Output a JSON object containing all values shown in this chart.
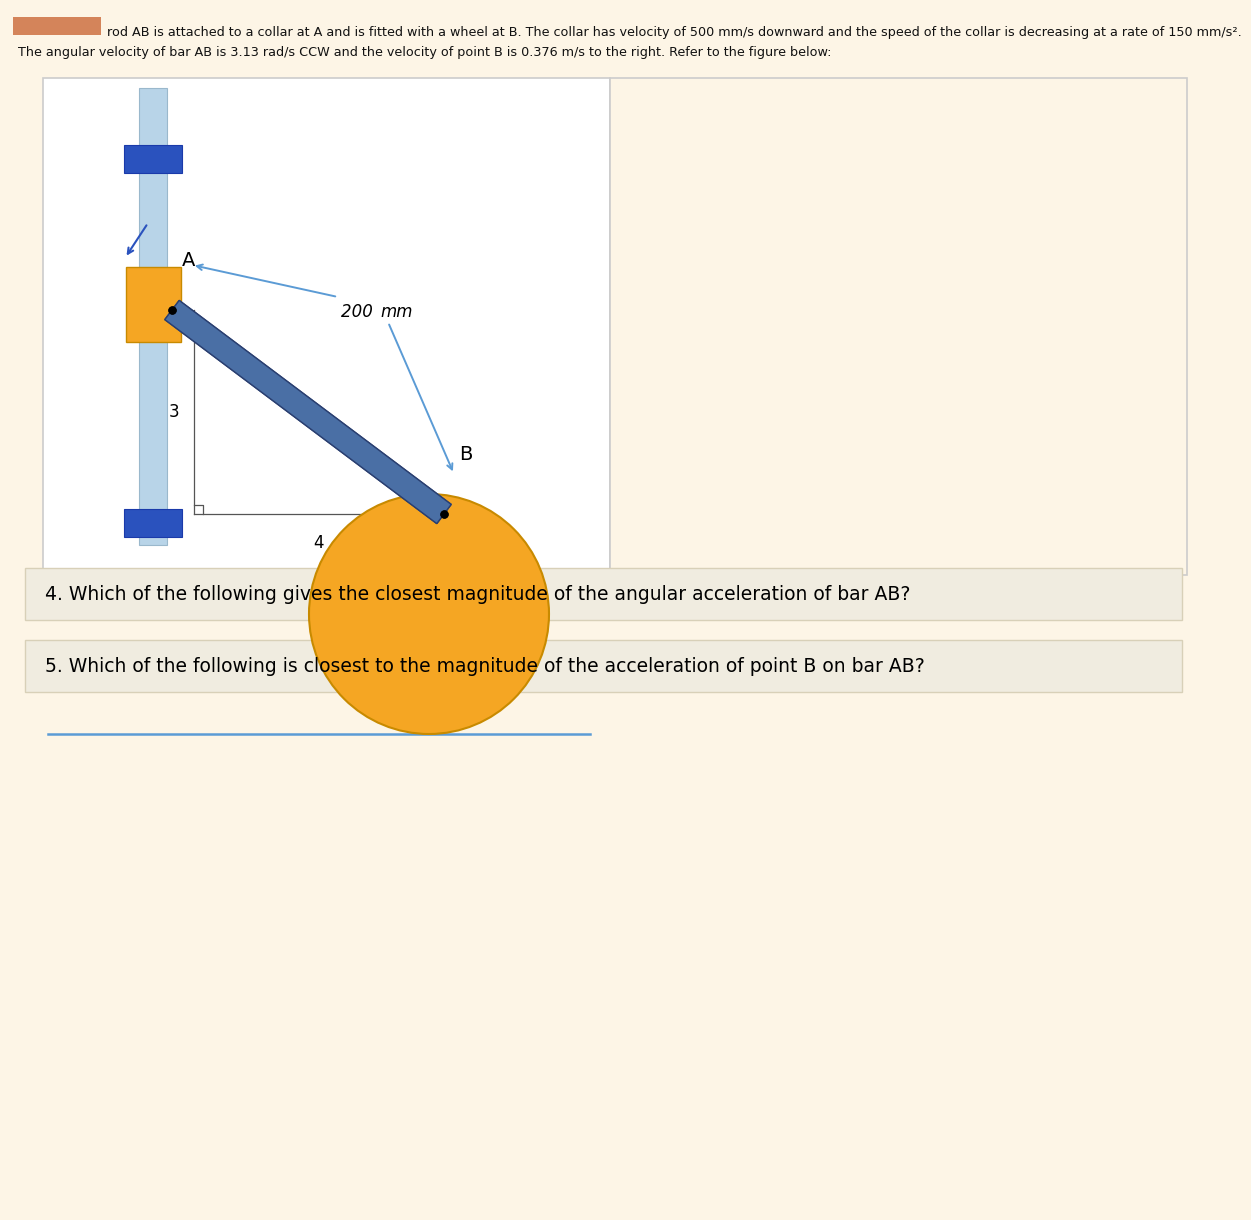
{
  "bg_color": "#fdf5e6",
  "fig_width": 11.87,
  "fig_height": 12.0,
  "header_text1": "rod AB is attached to a collar at A and is fitted with a wheel at B. The collar has velocity of 500 mm/s downward and the speed of the collar is decreasing at a rate of 150 mm/s².",
  "header_text2": "The angular velocity of bar AB is 3.13 rad/s CCW and the velocity of point B is 0.376 m/s to the right. Refer to the figure below:",
  "header_highlight_color": "#d4845a",
  "question4": "4. Which of the following gives the closest magnitude of the angular acceleration of bar AB?",
  "question5": "5. Which of the following is closest to the magnitude of the acceleration of point B on bar AB?",
  "diagram_bg": "#ffffff",
  "vertical_rail_color": "#b8d4e8",
  "collar_color": "#f5a623",
  "bar_color": "#4a6fa5",
  "wheel_color": "#f5a623",
  "blue_block_color": "#2a52be",
  "ground_line_color": "#5b9bd5",
  "annotation_arrow_color": "#5b9bd5",
  "q_box_color": "#f0ece0",
  "q_border_color": "#d8d0b8"
}
